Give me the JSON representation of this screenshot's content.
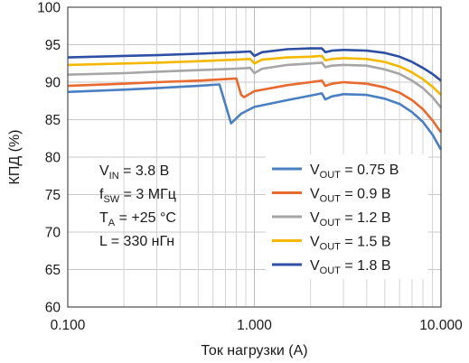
{
  "chart_data": {
    "type": "line",
    "xlabel": "Ток нагрузки (А)",
    "ylabel": "КПД (%)",
    "xscale": "log",
    "xlim": [
      0.1,
      10.0
    ],
    "ylim": [
      60,
      100
    ],
    "x_ticks": [
      {
        "value": 0.1,
        "label": "0.100"
      },
      {
        "value": 1.0,
        "label": "1.000"
      },
      {
        "value": 10.0,
        "label": "10.000"
      }
    ],
    "y_ticks": [
      60,
      65,
      70,
      75,
      80,
      85,
      90,
      95,
      100
    ],
    "grid": true,
    "legend_position": "bottom-right",
    "conditions": [
      {
        "main": "V",
        "sub": "IN",
        "rest": " = 3.8 В"
      },
      {
        "main": "f",
        "sub": "SW",
        "rest": " = 3 МГц"
      },
      {
        "main": "T",
        "sub": "A",
        "rest": " = +25 °C"
      },
      {
        "main": "L = 330 нГн",
        "sub": "",
        "rest": ""
      }
    ],
    "series": [
      {
        "legend": {
          "main": "V",
          "sub": "OUT",
          "rest": " = 0.75 В"
        },
        "color": "#4a7fc1",
        "points": [
          [
            0.1,
            88.7
          ],
          [
            0.2,
            89.0
          ],
          [
            0.3,
            89.2
          ],
          [
            0.5,
            89.5
          ],
          [
            0.65,
            89.7
          ],
          [
            0.72,
            86.0
          ],
          [
            0.75,
            84.5
          ],
          [
            0.85,
            85.8
          ],
          [
            1.0,
            86.7
          ],
          [
            1.5,
            87.6
          ],
          [
            2.0,
            88.2
          ],
          [
            2.3,
            88.5
          ],
          [
            2.4,
            87.7
          ],
          [
            2.6,
            88.1
          ],
          [
            3.0,
            88.4
          ],
          [
            4.0,
            88.3
          ],
          [
            5.0,
            87.8
          ],
          [
            6.0,
            87.1
          ],
          [
            7.0,
            86.0
          ],
          [
            8.0,
            84.7
          ],
          [
            9.0,
            83.0
          ],
          [
            10.0,
            81.0
          ]
        ]
      },
      {
        "legend": {
          "main": "V",
          "sub": "OUT",
          "rest": " = 0.9 В"
        },
        "color": "#e86a2e",
        "points": [
          [
            0.1,
            89.5
          ],
          [
            0.2,
            89.8
          ],
          [
            0.3,
            90.0
          ],
          [
            0.5,
            90.2
          ],
          [
            0.8,
            90.5
          ],
          [
            0.85,
            88.3
          ],
          [
            0.88,
            88.0
          ],
          [
            1.0,
            88.8
          ],
          [
            1.5,
            89.6
          ],
          [
            2.0,
            90.0
          ],
          [
            2.3,
            90.2
          ],
          [
            2.4,
            89.5
          ],
          [
            2.6,
            89.8
          ],
          [
            3.0,
            90.0
          ],
          [
            4.0,
            89.8
          ],
          [
            5.0,
            89.3
          ],
          [
            6.0,
            88.6
          ],
          [
            7.0,
            87.6
          ],
          [
            8.0,
            86.4
          ],
          [
            9.0,
            84.9
          ],
          [
            10.0,
            83.3
          ]
        ]
      },
      {
        "legend": {
          "main": "V",
          "sub": "OUT",
          "rest": " = 1.2 В"
        },
        "color": "#a6a6a6",
        "points": [
          [
            0.1,
            91.0
          ],
          [
            0.2,
            91.2
          ],
          [
            0.3,
            91.4
          ],
          [
            0.5,
            91.6
          ],
          [
            0.8,
            91.8
          ],
          [
            0.95,
            91.9
          ],
          [
            1.0,
            91.2
          ],
          [
            1.1,
            91.8
          ],
          [
            1.5,
            92.3
          ],
          [
            2.0,
            92.5
          ],
          [
            2.3,
            92.6
          ],
          [
            2.4,
            92.0
          ],
          [
            2.6,
            92.2
          ],
          [
            3.0,
            92.3
          ],
          [
            4.0,
            92.2
          ],
          [
            5.0,
            91.7
          ],
          [
            6.0,
            91.1
          ],
          [
            7.0,
            90.2
          ],
          [
            8.0,
            89.2
          ],
          [
            9.0,
            88.0
          ],
          [
            10.0,
            86.6
          ]
        ]
      },
      {
        "legend": {
          "main": "V",
          "sub": "OUT",
          "rest": " = 1.5 В"
        },
        "color": "#f5b800",
        "points": [
          [
            0.1,
            92.3
          ],
          [
            0.2,
            92.5
          ],
          [
            0.3,
            92.6
          ],
          [
            0.5,
            92.8
          ],
          [
            0.8,
            93.0
          ],
          [
            0.95,
            93.1
          ],
          [
            1.0,
            92.5
          ],
          [
            1.1,
            93.0
          ],
          [
            1.5,
            93.3
          ],
          [
            2.0,
            93.4
          ],
          [
            2.3,
            93.5
          ],
          [
            2.4,
            92.9
          ],
          [
            2.6,
            93.1
          ],
          [
            3.0,
            93.2
          ],
          [
            4.0,
            93.1
          ],
          [
            5.0,
            92.7
          ],
          [
            6.0,
            92.1
          ],
          [
            7.0,
            91.3
          ],
          [
            8.0,
            90.4
          ],
          [
            9.0,
            89.4
          ],
          [
            10.0,
            88.3
          ]
        ]
      },
      {
        "legend": {
          "main": "V",
          "sub": "OUT",
          "rest": " = 1.8 В"
        },
        "color": "#2e4fa3",
        "points": [
          [
            0.1,
            93.3
          ],
          [
            0.2,
            93.5
          ],
          [
            0.3,
            93.6
          ],
          [
            0.5,
            93.8
          ],
          [
            0.8,
            94.0
          ],
          [
            0.95,
            94.1
          ],
          [
            1.0,
            93.5
          ],
          [
            1.1,
            94.0
          ],
          [
            1.5,
            94.4
          ],
          [
            2.0,
            94.5
          ],
          [
            2.3,
            94.5
          ],
          [
            2.4,
            94.0
          ],
          [
            2.6,
            94.2
          ],
          [
            3.0,
            94.3
          ],
          [
            4.0,
            94.2
          ],
          [
            5.0,
            93.9
          ],
          [
            6.0,
            93.4
          ],
          [
            7.0,
            92.7
          ],
          [
            8.0,
            91.9
          ],
          [
            9.0,
            91.1
          ],
          [
            10.0,
            90.2
          ]
        ]
      }
    ]
  }
}
